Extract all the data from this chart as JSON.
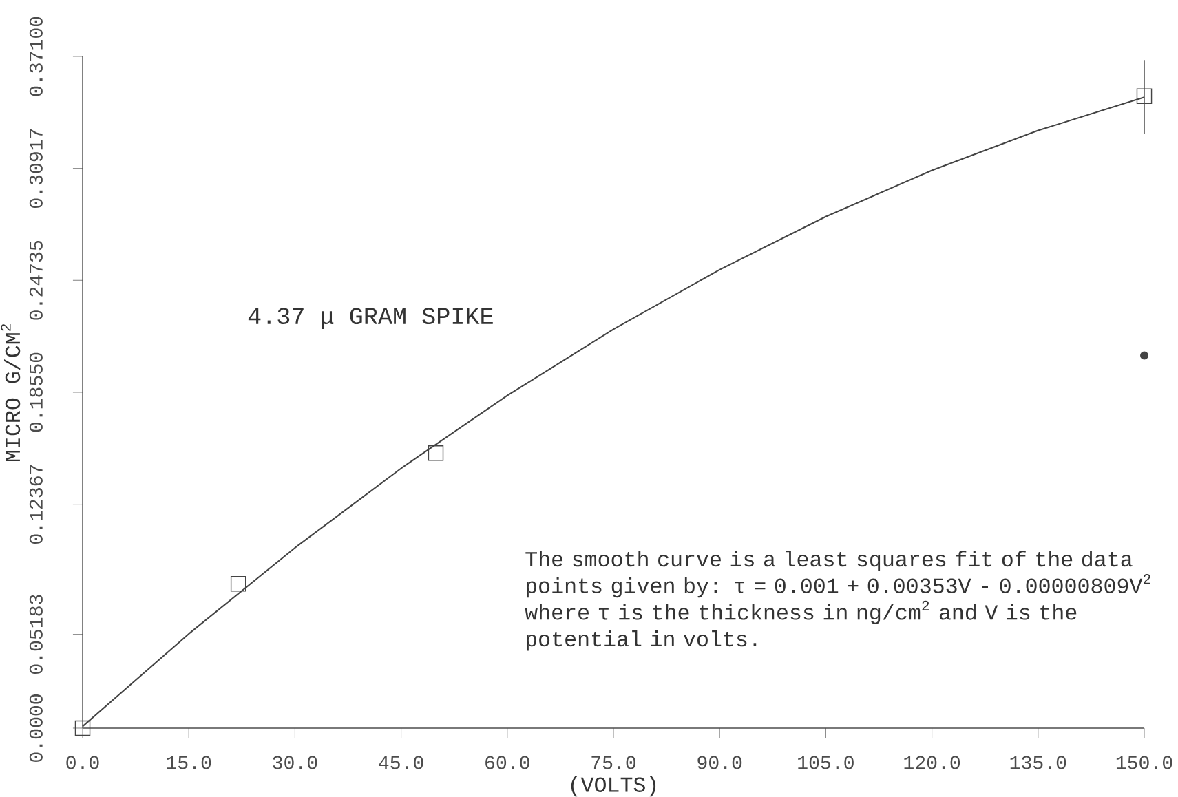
{
  "chart_data": {
    "type": "scatter",
    "xlabel": "(VOLTS)",
    "ylabel": "MICRO G/CM$^{2}$",
    "xlim": [
      0,
      150
    ],
    "ylim": [
      0,
      0.371
    ],
    "xticks": [
      {
        "value": 0,
        "label": "0.0"
      },
      {
        "value": 15,
        "label": "15.0"
      },
      {
        "value": 30,
        "label": "30.0"
      },
      {
        "value": 45,
        "label": "45.0"
      },
      {
        "value": 60,
        "label": "60.0"
      },
      {
        "value": 75,
        "label": "75.0"
      },
      {
        "value": 90,
        "label": "90.0"
      },
      {
        "value": 105,
        "label": "105.0"
      },
      {
        "value": 120,
        "label": "120.0"
      },
      {
        "value": 135,
        "label": "135.0"
      },
      {
        "value": 150,
        "label": "150.0"
      }
    ],
    "yticks": [
      {
        "value": 0,
        "label": "0.0000"
      },
      0.05183,
      0.12367,
      {
        "value": 0.1855,
        "label": "0.18550"
      },
      0.24735,
      0.30917,
      {
        "value": 0.371,
        "label": "0.37100"
      }
    ],
    "grid": false,
    "series": [
      {
        "marker": "square",
        "color": "#444444",
        "x": [
          0,
          22,
          49.9,
          150
        ],
        "values": [
          0,
          0.0797,
          0.1519,
          0.349
        ],
        "errors": [
          null,
          null,
          null,
          [
            0.328,
            0.369
          ]
        ]
      },
      {
        "marker": "circle",
        "color": "#444444",
        "x": [
          150
        ],
        "values": [
          0.2058
        ]
      },
      {
        "type": "line",
        "marker": "none",
        "color": "#444444",
        "x": [
          0,
          15,
          30,
          45,
          60,
          75,
          90,
          105,
          120,
          135,
          150
        ],
        "values": [
          0.001,
          0.0521,
          0.0996,
          0.1435,
          0.1837,
          0.2203,
          0.2532,
          0.2825,
          0.3081,
          0.3301,
          0.3485
        ]
      }
    ],
    "annotations": [
      "4.37 μ GRAM SPIKE",
      "The smooth curve is a least squares fit of the data points given by: τ = 0.001 + 0.00353V - 0.00000809V$^{2}$ where τ is the thickness in ng/cm$^{2}$ and V is the potential in volts."
    ]
  }
}
